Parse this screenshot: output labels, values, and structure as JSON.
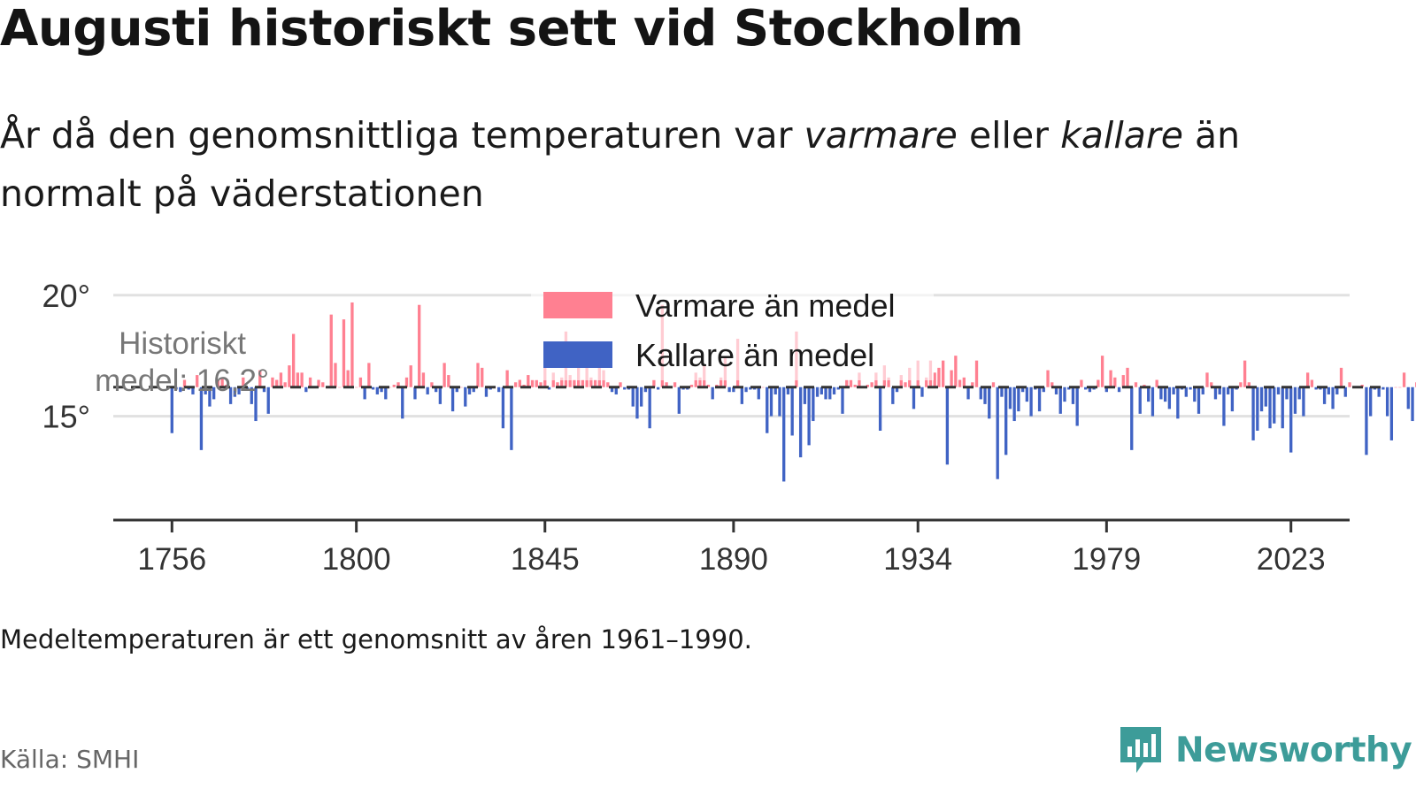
{
  "title": "Augusti historiskt sett vid Stockholm",
  "subtitle": {
    "part1": "År då den genomsnittliga temperaturen var ",
    "warm_word": "varmare",
    "part2": " eller ",
    "cold_word": "kallare",
    "part3": " än normalt på väderstationen"
  },
  "note": "Medeltemperaturen är ett genomsnitt av åren 1961–1990.",
  "source": "Källa: SMHI",
  "brand": {
    "name": "Newsworthy",
    "icon": "newsworthy-logo-icon"
  },
  "colors": {
    "warm": "#ff8091",
    "cold": "#4063c4",
    "axis": "#333333",
    "grid": "#e1e1e1",
    "brand": "#3d9c99"
  },
  "chart_data": {
    "type": "bar",
    "baseline": 16.2,
    "baseline_label_line1": "Historiskt",
    "baseline_label_line2": "medel: 16,2°",
    "legend": [
      {
        "label": "Varmare än medel",
        "color": "#ff8091"
      },
      {
        "label": "Kallare än medel",
        "color": "#4063c4"
      }
    ],
    "legend_position": "top-center",
    "y_ticks": [
      {
        "value": 20,
        "label": "20°"
      },
      {
        "value": 15,
        "label": "15°"
      }
    ],
    "ylim": [
      11.0,
      21.6
    ],
    "grid": true,
    "x_ticks": [
      {
        "value": 1756,
        "label": "1756"
      },
      {
        "value": 1800,
        "label": "1800"
      },
      {
        "value": 1845,
        "label": "1845"
      },
      {
        "value": 1890,
        "label": "1890"
      },
      {
        "value": 1934,
        "label": "1934"
      },
      {
        "value": 1979,
        "label": "1979"
      },
      {
        "value": 2023,
        "label": "2023"
      }
    ],
    "xlim": [
      1742,
      2037
    ],
    "start_year": 1756,
    "values": [
      14.3,
      16.1,
      16.0,
      16.5,
      16.1,
      15.9,
      16.7,
      13.6,
      15.9,
      15.4,
      15.7,
      16.5,
      16.6,
      16.3,
      15.5,
      15.8,
      15.9,
      16.6,
      16.1,
      15.5,
      14.8,
      16.9,
      16.0,
      15.1,
      16.6,
      16.5,
      16.8,
      16.4,
      17.1,
      18.4,
      16.8,
      16.8,
      16.0,
      16.6,
      16.2,
      16.5,
      16.4,
      16.2,
      19.2,
      17.2,
      16.2,
      19.0,
      16.9,
      19.7,
      16.2,
      16.6,
      15.7,
      17.2,
      16.1,
      15.9,
      16.0,
      15.7,
      16.2,
      16.3,
      16.4,
      14.9,
      16.6,
      17.1,
      15.7,
      19.6,
      16.8,
      15.9,
      16.4,
      16.0,
      15.5,
      17.2,
      16.7,
      15.2,
      16.0,
      16.2,
      15.4,
      15.9,
      16.0,
      17.2,
      17.0,
      15.8,
      16.1,
      16.2,
      16.0,
      14.5,
      16.9,
      13.6,
      16.4,
      16.5,
      16.3,
      16.7,
      16.5,
      16.5,
      16.4,
      17.8,
      16.1,
      16.8,
      16.4,
      16.6,
      18.5,
      16.7,
      16.5,
      17.0,
      16.5,
      17.3,
      16.6,
      16.5,
      17.0,
      16.9,
      16.4,
      16.0,
      15.9,
      16.4,
      16.1,
      16.1,
      15.4,
      14.9,
      15.4,
      16.0,
      14.5,
      16.5,
      16.1,
      19.6,
      16.4,
      16.2,
      16.4,
      15.1,
      16.1,
      16.1,
      16.3,
      16.8,
      16.6,
      17.1,
      16.3,
      15.7,
      16.3,
      16.6,
      17.4,
      16.0,
      16.0,
      18.2,
      15.5,
      16.0,
      16.1,
      16.1,
      15.7,
      16.2,
      14.3,
      15.0,
      15.9,
      15.0,
      12.3,
      15.9,
      14.2,
      18.5,
      13.3,
      15.5,
      13.8,
      14.8,
      15.8,
      15.9,
      15.7,
      15.7,
      15.9,
      16.1,
      15.1,
      16.5,
      16.5,
      16.3,
      16.8,
      16.2,
      16.3,
      16.4,
      16.8,
      14.4,
      17.1,
      16.6,
      15.5,
      16.0,
      16.7,
      16.4,
      17.0,
      15.3,
      17.3,
      15.8,
      16.6,
      17.3,
      16.8,
      17.0,
      17.3,
      13.0,
      16.9,
      17.5,
      16.5,
      16.6,
      15.7,
      16.4,
      17.3,
      15.7,
      15.5,
      14.9,
      16.4,
      12.4,
      15.8,
      13.4,
      15.3,
      14.8,
      15.2,
      16.0,
      15.6,
      15.0,
      16.1,
      15.2,
      16.0,
      16.9,
      16.4,
      15.9,
      15.1,
      15.6,
      16.1,
      15.5,
      14.6,
      16.5,
      16.1,
      16.0,
      16.1,
      16.5,
      17.5,
      16.0,
      16.9,
      16.6,
      16.0,
      16.7,
      17.0,
      13.6,
      16.4,
      15.1,
      16.3,
      15.6,
      15.0,
      16.5,
      15.7,
      15.6,
      15.3,
      15.9,
      14.9,
      16.1,
      15.8,
      16.1,
      15.6,
      15.1,
      15.9,
      16.8,
      16.4,
      15.7,
      15.9,
      14.6,
      15.9,
      15.2,
      16.1,
      16.4,
      17.3,
      16.4,
      14.0,
      14.4,
      15.2,
      15.4,
      14.5,
      14.7,
      15.9,
      14.5,
      15.7,
      13.5,
      15.1,
      15.7,
      15.0,
      16.8,
      16.5,
      16.1,
      16.1,
      15.5,
      15.9,
      15.3,
      15.9,
      17.0,
      15.8,
      16.4,
      16.2,
      16.2,
      16.3,
      13.4,
      15.0,
      16.1,
      15.8,
      16.1,
      15.0,
      14.0,
      16.2,
      16.2,
      16.8,
      15.3,
      14.8,
      16.4,
      15.7,
      14.3,
      16.7,
      16.0,
      14.8,
      16.1,
      16.4,
      16.4,
      16.1,
      17.3,
      15.9,
      16.4,
      15.2,
      16.0,
      16.1,
      16.0,
      16.5,
      16.4,
      16.3,
      16.3,
      16.8,
      17.0,
      17.8,
      16.4,
      16.9,
      19.0,
      18.3,
      17.1,
      15.1,
      16.9,
      16.3,
      15.8,
      16.6,
      16.7,
      18.6,
      16.9,
      17.6,
      15.8,
      17.3,
      16.7,
      16.0,
      16.8,
      17.4,
      16.0,
      17.2,
      16.3,
      15.2,
      16.5,
      16.8,
      18.2,
      16.8,
      17.2,
      16.3,
      16.5,
      16.1,
      15.0,
      16.4,
      19.7,
      16.6,
      16.1,
      16.5,
      16.5,
      15.8,
      16.6,
      15.6,
      15.4,
      14.4,
      16.6,
      14.3,
      15.8,
      16.2,
      16.5,
      17.4,
      16.4,
      16.5,
      16.5,
      17.4,
      18.1,
      16.8,
      16.4,
      16.2,
      16.5,
      16.4,
      19.4,
      17.2,
      16.4,
      16.4,
      16.4,
      17.2,
      16.6,
      16.3,
      16.4,
      15.6,
      15.3,
      15.9,
      16.5,
      16.0,
      15.8,
      14.9,
      16.2,
      16.4,
      16.5,
      17.2,
      16.1,
      17.8,
      17.0,
      16.7,
      16.5,
      16.5,
      16.3,
      13.7,
      13.2,
      16.4,
      15.9,
      16.4,
      16.4,
      17.5,
      16.7,
      17.6,
      16.3,
      16.4,
      14.7,
      16.5,
      16.8,
      17.3,
      18.0,
      19.6,
      21.1,
      16.6,
      15.0,
      16.5,
      16.7,
      17.5,
      16.3,
      21.1,
      17.1,
      16.5,
      18.2,
      17.5,
      16.5,
      17.3,
      19.2,
      17.0,
      16.8,
      16.6,
      16.9,
      16.3,
      17.0,
      16.5,
      16.9,
      17.6,
      17.1,
      18.0,
      16.4,
      16.6,
      19.5,
      17.5,
      19.3,
      16.5,
      16.3,
      16.4,
      16.1,
      19.9,
      16.9,
      17.2
    ]
  }
}
